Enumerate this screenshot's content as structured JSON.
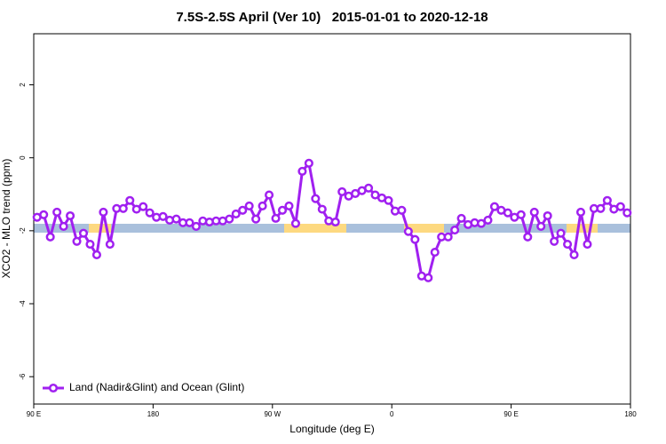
{
  "chart_data": {
    "type": "line",
    "title": "7.5S-2.5S April (Ver 10)   2015-01-01 to 2020-12-18",
    "xlabel": "Longitude (deg E)",
    "ylabel": "XCO2 - MLO trend (ppm)",
    "x": [
      92.5,
      97.5,
      102.5,
      107.5,
      112.5,
      117.5,
      122.5,
      127.5,
      132.5,
      137.5,
      142.5,
      147.5,
      152.5,
      157.5,
      162.5,
      167.5,
      172.5,
      177.5,
      182.5,
      187.5,
      192.5,
      197.5,
      202.5,
      207.5,
      212.5,
      217.5,
      222.5,
      227.5,
      232.5,
      237.5,
      242.5,
      247.5,
      252.5,
      257.5,
      262.5,
      267.5,
      272.5,
      277.5,
      282.5,
      287.5,
      292.5,
      297.5,
      302.5,
      307.5,
      312.5,
      317.5,
      322.5,
      327.5,
      332.5,
      337.5,
      342.5,
      347.5,
      352.5,
      357.5,
      362.5,
      367.5,
      372.5,
      377.5,
      382.5,
      387.5,
      392.5,
      397.5,
      402.5,
      407.5,
      412.5,
      417.5,
      422.5,
      427.5,
      432.5,
      437.5,
      442.5,
      447.5,
      452.5,
      457.5,
      462.5,
      467.5,
      472.5,
      477.5,
      482.5,
      487.5,
      492.5,
      497.5,
      502.5,
      507.5,
      512.5,
      517.5,
      522.5,
      527.5,
      532.5,
      537.5
    ],
    "series": [
      {
        "name": "Land (Nadir&Glint) and Ocean (Glint)",
        "color": "#a020f0",
        "values": [
          -1.63,
          -1.56,
          -2.17,
          -1.49,
          -1.88,
          -1.59,
          -2.29,
          -2.07,
          -2.37,
          -2.66,
          -1.49,
          -2.37,
          -1.39,
          -1.39,
          -1.17,
          -1.41,
          -1.34,
          -1.51,
          -1.63,
          -1.61,
          -1.71,
          -1.68,
          -1.78,
          -1.78,
          -1.88,
          -1.73,
          -1.76,
          -1.73,
          -1.73,
          -1.68,
          -1.54,
          -1.44,
          -1.32,
          -1.68,
          -1.32,
          -1.02,
          -1.66,
          -1.44,
          -1.32,
          -1.8,
          -0.37,
          -0.15,
          -1.12,
          -1.41,
          -1.73,
          -1.76,
          -0.93,
          -1.05,
          -0.98,
          -0.9,
          -0.83,
          -1.02,
          -1.1,
          -1.17,
          -1.46,
          -1.44,
          -2.02,
          -2.24,
          -3.24,
          -3.29,
          -2.59,
          -2.17,
          -2.17,
          -1.98,
          -1.66,
          -1.83,
          -1.78,
          -1.8,
          -1.71,
          -1.34,
          -1.44,
          -1.51,
          -1.63,
          -1.56,
          -2.17,
          -1.49,
          -1.88,
          -1.59,
          -2.29,
          -2.07,
          -2.37,
          -2.66,
          -1.49,
          -2.37,
          -1.39,
          -1.39,
          -1.17,
          -1.41,
          -1.34,
          -1.51
        ]
      }
    ],
    "xlim": [
      90,
      540
    ],
    "xticks": [
      {
        "value": 90,
        "label": "90 E"
      },
      180,
      {
        "value": 270,
        "label": "90 W"
      },
      {
        "value": 360,
        "label": "0"
      },
      {
        "value": 450,
        "label": "90 E"
      },
      {
        "value": 540,
        "label": "180"
      }
    ],
    "ylim": [
      -6.75,
      3.4
    ],
    "yticks": [
      2,
      0,
      -2,
      -4,
      -6
    ],
    "legend": "bottom-left"
  }
}
